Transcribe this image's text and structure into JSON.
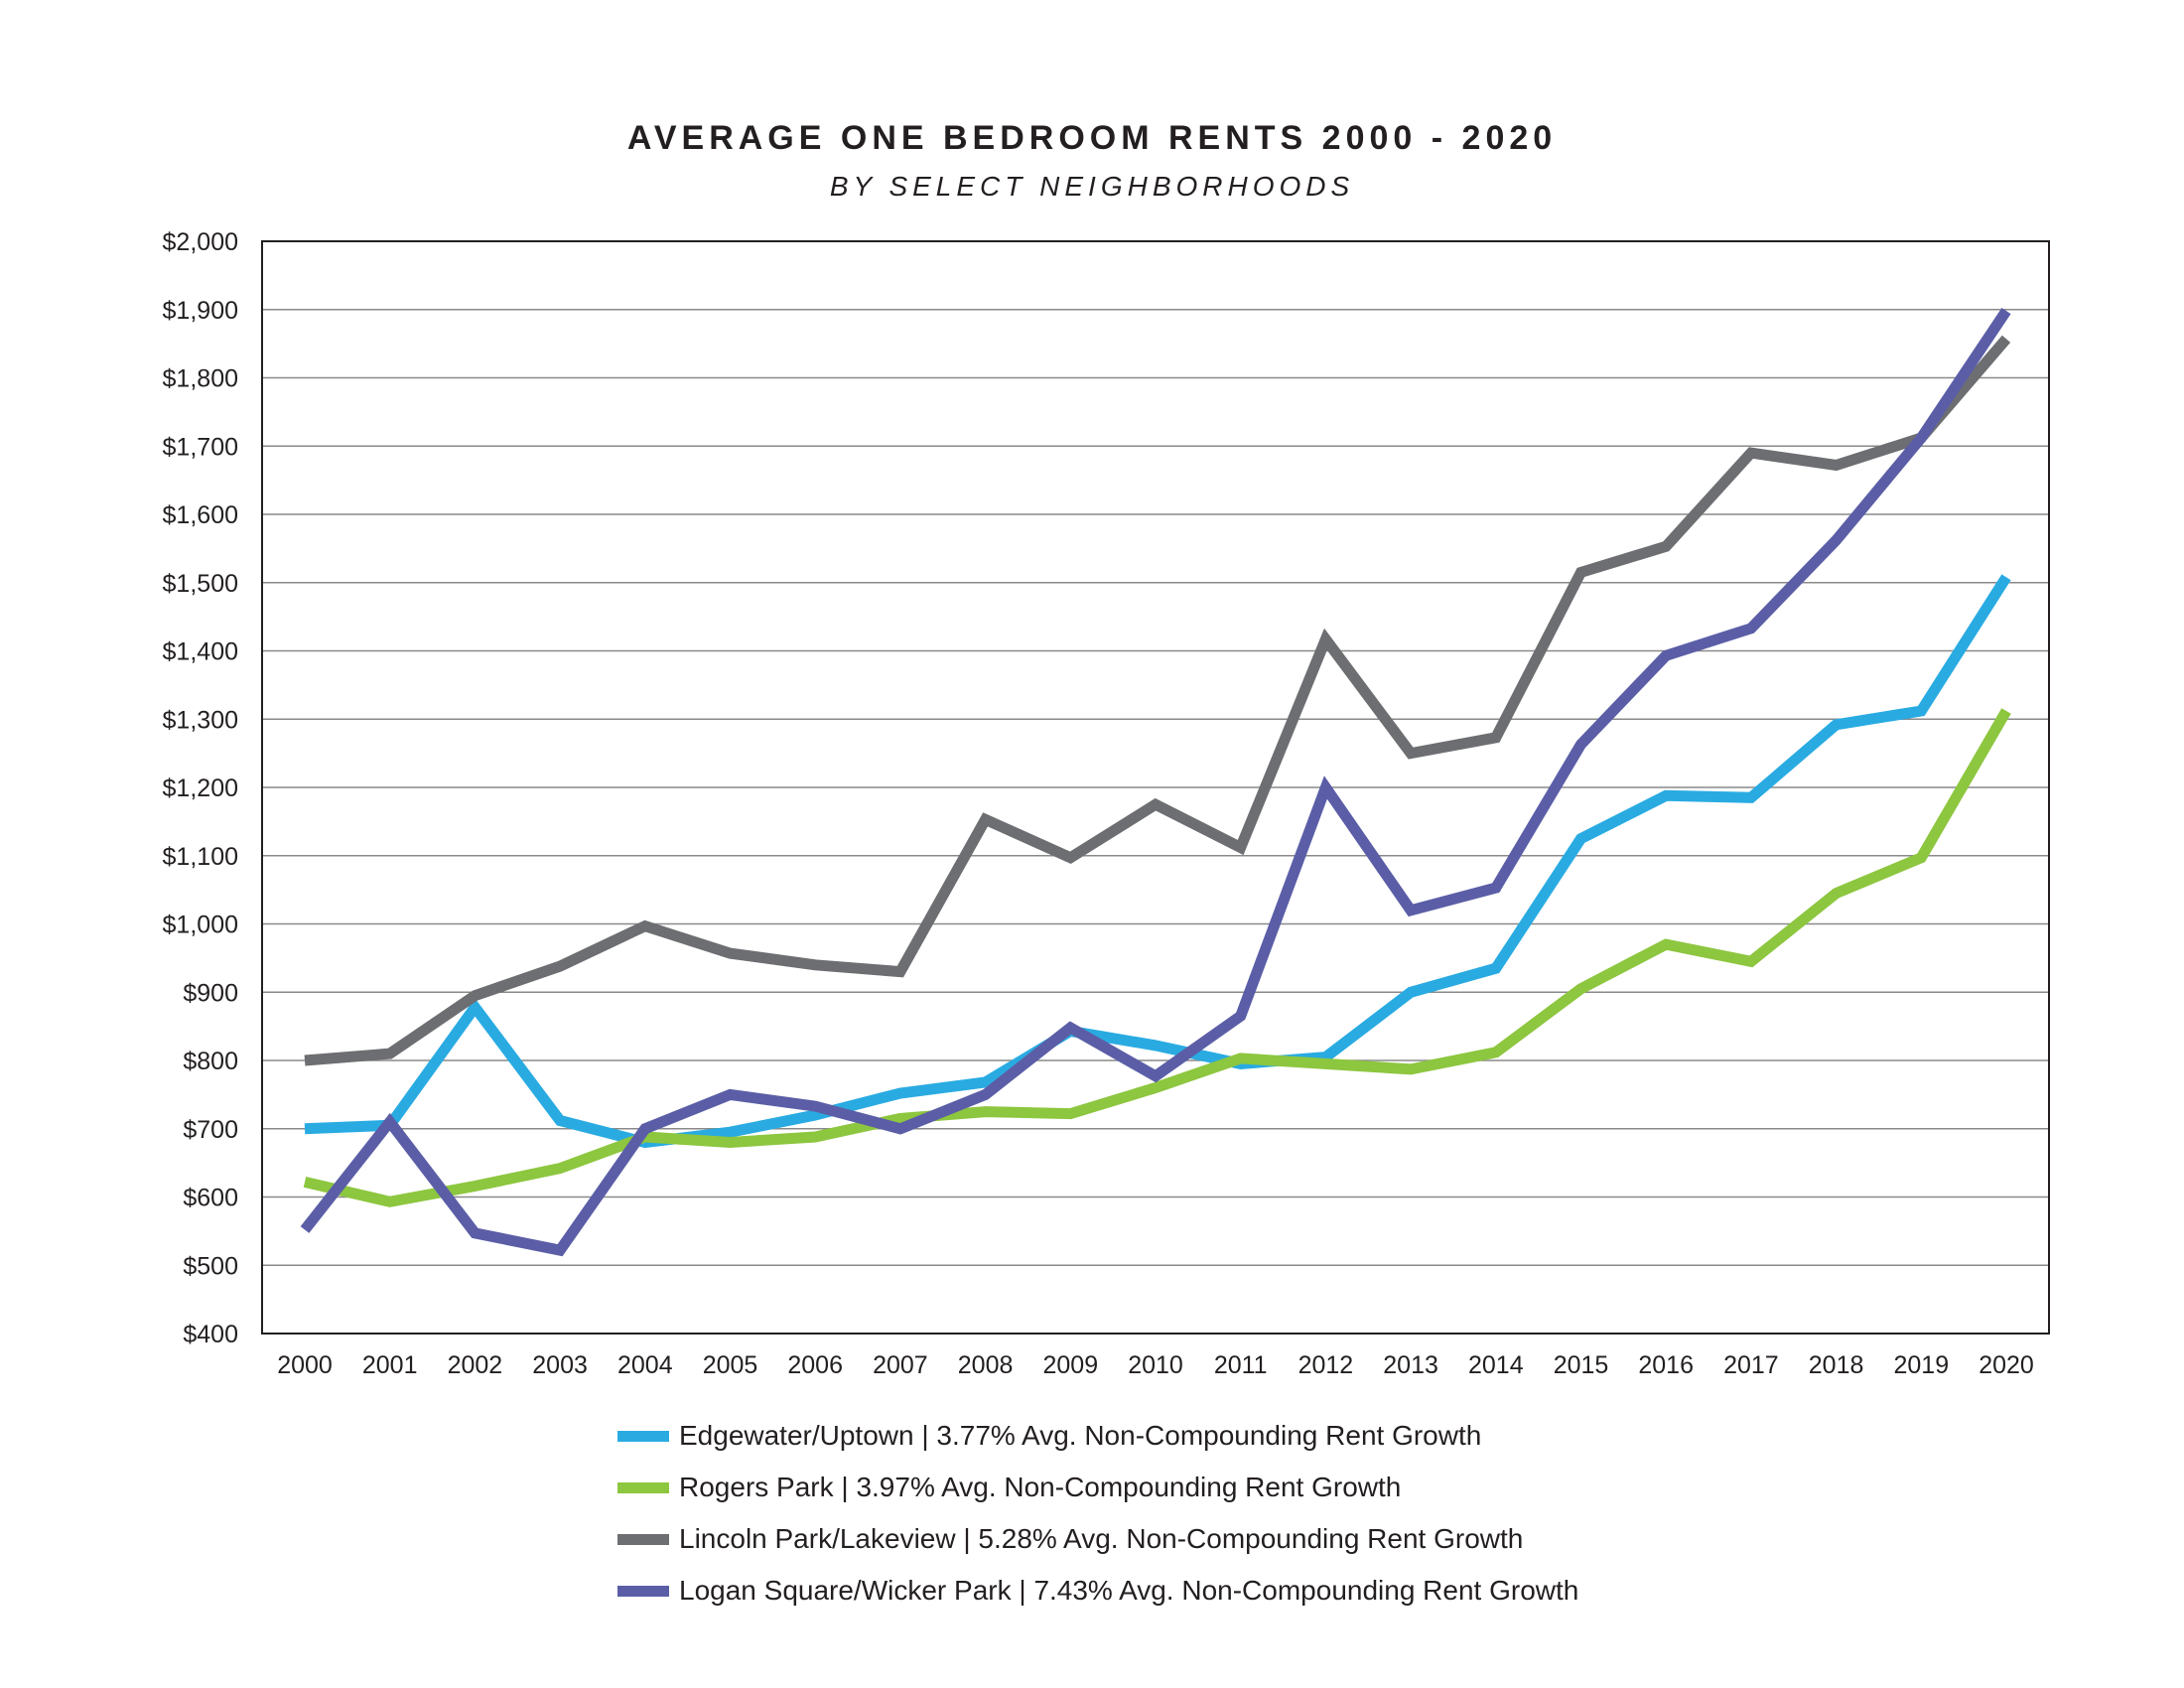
{
  "chart_data": {
    "type": "line",
    "title": "AVERAGE ONE BEDROOM RENTS 2000 - 2020",
    "subtitle": "BY SELECT NEIGHBORHOODS",
    "x": [
      2000,
      2001,
      2002,
      2003,
      2004,
      2005,
      2006,
      2007,
      2008,
      2009,
      2010,
      2011,
      2012,
      2013,
      2014,
      2015,
      2016,
      2017,
      2018,
      2019,
      2020
    ],
    "x_tick_labels": [
      "2000",
      "2001",
      "2002",
      "2003",
      "2004",
      "2005",
      "2006",
      "2007",
      "2008",
      "2009",
      "2010",
      "2011",
      "2012",
      "2013",
      "2014",
      "2015",
      "2016",
      "2017",
      "2018",
      "2019",
      "2020"
    ],
    "ylim": [
      400,
      2000
    ],
    "y_ticks": [
      400,
      500,
      600,
      700,
      800,
      900,
      1000,
      1100,
      1200,
      1300,
      1400,
      1500,
      1600,
      1700,
      1800,
      1900,
      2000
    ],
    "y_tick_labels": [
      "$400",
      "$500",
      "$600",
      "$700",
      "$800",
      "$900",
      "$1,000",
      "$1,100",
      "$1,200",
      "$1,300",
      "$1,400",
      "$1,500",
      "$1,600",
      "$1,700",
      "$1,800",
      "$1,900",
      "$2,000"
    ],
    "grid": "horizontal",
    "legend_position": "bottom",
    "series": [
      {
        "name": "Edgewater/Uptown | 3.77% Avg. Non-Compounding Rent Growth",
        "color": "#29abe2",
        "values": [
          700,
          705,
          878,
          712,
          680,
          695,
          720,
          752,
          768,
          843,
          822,
          795,
          805,
          900,
          935,
          1125,
          1188,
          1185,
          1292,
          1312,
          1508
        ]
      },
      {
        "name": "Rogers Park | 3.97% Avg. Non-Compounding Rent Growth",
        "color": "#8dc63f",
        "values": [
          622,
          593,
          616,
          642,
          688,
          680,
          688,
          715,
          725,
          722,
          760,
          803,
          795,
          787,
          812,
          905,
          970,
          945,
          1045,
          1097,
          1312
        ]
      },
      {
        "name": "Lincoln Park/Lakeview | 5.28% Avg. Non-Compounding Rent Growth",
        "color": "#6d6e71",
        "values": [
          800,
          810,
          895,
          938,
          997,
          957,
          940,
          930,
          1153,
          1097,
          1175,
          1112,
          1417,
          1250,
          1273,
          1515,
          1553,
          1690,
          1672,
          1712,
          1857
        ]
      },
      {
        "name": "Logan Square/Wicker Park | 7.43% Avg. Non-Compounding Rent Growth",
        "color": "#5b5ea6",
        "values": [
          552,
          710,
          547,
          522,
          700,
          750,
          733,
          700,
          750,
          848,
          777,
          865,
          1200,
          1020,
          1053,
          1263,
          1393,
          1433,
          1562,
          1712,
          1898
        ]
      }
    ]
  }
}
